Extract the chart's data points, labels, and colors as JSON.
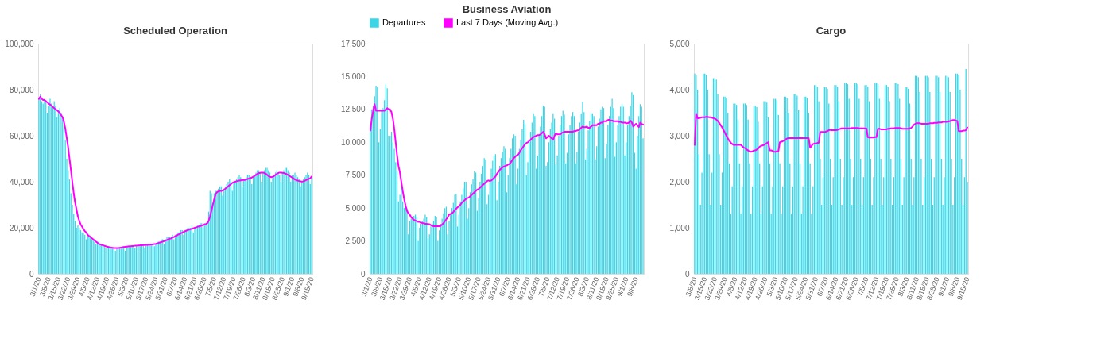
{
  "chart_data": [
    {
      "type": "bar",
      "title": "Scheduled Operation",
      "grid": false,
      "categories": [
        "3/1/20",
        null,
        null,
        null,
        null,
        null,
        null,
        "3/8/20",
        null,
        null,
        null,
        null,
        null,
        null,
        "3/15/20",
        null,
        null,
        null,
        null,
        null,
        null,
        "3/22/20",
        null,
        null,
        null,
        null,
        null,
        null,
        "3/29/20",
        null,
        null,
        null,
        null,
        null,
        null,
        "4/5/20",
        null,
        null,
        null,
        null,
        null,
        null,
        "4/12/20",
        null,
        null,
        null,
        null,
        null,
        null,
        "4/19/20",
        null,
        null,
        null,
        null,
        null,
        null,
        "4/26/20",
        null,
        null,
        null,
        null,
        null,
        null,
        "5/3/20",
        null,
        null,
        null,
        null,
        null,
        null,
        "5/10/20",
        null,
        null,
        null,
        null,
        null,
        null,
        "5/17/20",
        null,
        null,
        null,
        null,
        null,
        null,
        "5/24/20",
        null,
        null,
        null,
        null,
        null,
        null,
        "5/31/20",
        null,
        null,
        null,
        null,
        null,
        null,
        "6/7/20",
        null,
        null,
        null,
        null,
        null,
        null,
        "6/14/20",
        null,
        null,
        null,
        null,
        null,
        null,
        "6/21/20",
        null,
        null,
        null,
        null,
        null,
        null,
        "6/28/20",
        null,
        null,
        null,
        null,
        null,
        null,
        "7/5/20",
        null,
        null,
        null,
        null,
        null,
        null,
        "7/12/20",
        null,
        null,
        null,
        null,
        null,
        null,
        "7/19/20",
        null,
        null,
        null,
        null,
        null,
        null,
        "7/26/20",
        null,
        null,
        null,
        null,
        null,
        null,
        "8/3/20",
        null,
        null,
        null,
        null,
        null,
        null,
        "8/11/20",
        null,
        null,
        null,
        null,
        null,
        null,
        "8/18/20",
        null,
        null,
        null,
        null,
        null,
        null,
        "8/25/20",
        null,
        null,
        null,
        null,
        null,
        null,
        "9/1/20",
        null,
        null,
        null,
        null,
        null,
        null,
        "9/8/20",
        null,
        null,
        null,
        null,
        null,
        null,
        "9/15/20"
      ],
      "ylim": [
        0,
        100000
      ],
      "yticks": [
        0,
        {
          "value": 20000,
          "label": "20,000"
        },
        {
          "value": 40000,
          "label": "40,000"
        },
        {
          "value": 60000,
          "label": "60,000"
        },
        {
          "value": 80000,
          "label": "80,000"
        },
        {
          "value": 100000,
          "label": "100,000"
        }
      ],
      "series": [
        {
          "color": "#3dd5e6",
          "values": [
            76000,
            78000,
            75000,
            74000,
            76000,
            75000,
            70000,
            73000,
            76000,
            74000,
            73000,
            75000,
            73000,
            68000,
            71000,
            72000,
            70000,
            67000,
            63000,
            58000,
            50000,
            45000,
            41000,
            35000,
            30000,
            26000,
            23000,
            20000,
            21000,
            20000,
            19000,
            18000,
            18000,
            17000,
            15000,
            17000,
            16000,
            16000,
            15000,
            15000,
            14000,
            13000,
            14000,
            14000,
            13000,
            13000,
            13000,
            12000,
            11000,
            12000,
            12000,
            12000,
            11000,
            11000,
            11000,
            10000,
            11000,
            11000,
            11000,
            11000,
            12000,
            12000,
            10000,
            12000,
            12000,
            12000,
            12000,
            12000,
            12000,
            11000,
            12000,
            12000,
            12000,
            12000,
            13000,
            13000,
            11000,
            13000,
            13000,
            13000,
            13000,
            13000,
            13000,
            12000,
            13000,
            14000,
            14000,
            14000,
            15000,
            15000,
            13000,
            15000,
            16000,
            16000,
            16000,
            16000,
            17000,
            15000,
            17000,
            17000,
            18000,
            18000,
            19000,
            19000,
            17000,
            19000,
            19000,
            20000,
            20000,
            20000,
            21000,
            18000,
            20000,
            20000,
            21000,
            21000,
            22000,
            22000,
            20000,
            22000,
            22000,
            22000,
            27000,
            36000,
            35000,
            30000,
            35000,
            36000,
            36000,
            37000,
            38000,
            38000,
            34000,
            37000,
            38000,
            39000,
            40000,
            41000,
            40000,
            36000,
            40000,
            40000,
            41000,
            42000,
            43000,
            42000,
            38000,
            41000,
            41000,
            42000,
            43000,
            43000,
            42000,
            39000,
            42000,
            43000,
            44000,
            45000,
            45000,
            44000,
            40000,
            44000,
            45000,
            46000,
            46000,
            45000,
            44000,
            40000,
            42000,
            43000,
            44000,
            45000,
            44000,
            43000,
            40000,
            44000,
            45000,
            46000,
            46000,
            45000,
            44000,
            40000,
            43000,
            43000,
            44000,
            43000,
            42000,
            41000,
            38000,
            40000,
            41000,
            42000,
            43000,
            44000,
            43000,
            39000,
            42000
          ]
        },
        {
          "color": "#ff00ff",
          "type": "line",
          "values": [
            76000,
            77000,
            76000,
            75500,
            75500,
            75000,
            74500,
            74000,
            73500,
            73000,
            72500,
            72000,
            71500,
            71000,
            70500,
            70000,
            69000,
            68000,
            66000,
            63000,
            59000,
            55000,
            50000,
            45000,
            40000,
            35000,
            31000,
            28000,
            25000,
            23000,
            21500,
            20500,
            19500,
            18500,
            18000,
            17000,
            16500,
            16000,
            15500,
            15000,
            14500,
            14000,
            13500,
            13000,
            12800,
            12600,
            12400,
            12200,
            12000,
            11800,
            11600,
            11500,
            11400,
            11300,
            11200,
            11200,
            11200,
            11200,
            11300,
            11400,
            11500,
            11600,
            11700,
            11800,
            11900,
            12000,
            12000,
            12100,
            12100,
            12200,
            12200,
            12300,
            12300,
            12400,
            12400,
            12500,
            12500,
            12600,
            12600,
            12700,
            12700,
            12800,
            12800,
            12900,
            13000,
            13200,
            13400,
            13600,
            13800,
            14000,
            14200,
            14500,
            14700,
            15000,
            15200,
            15400,
            15700,
            16000,
            16300,
            16600,
            17000,
            17300,
            17600,
            17900,
            18200,
            18500,
            18800,
            19000,
            19200,
            19400,
            19600,
            19800,
            20000,
            20200,
            20400,
            20600,
            20800,
            21000,
            21200,
            21400,
            21600,
            22000,
            23000,
            25000,
            27500,
            30000,
            32500,
            34500,
            35500,
            35800,
            36000,
            36000,
            36200,
            36500,
            37000,
            37500,
            38000,
            38500,
            39000,
            39500,
            39800,
            40000,
            40200,
            40400,
            40500,
            40600,
            40700,
            40800,
            40800,
            41000,
            41200,
            41400,
            41600,
            41800,
            42200,
            42600,
            43000,
            43400,
            43700,
            43900,
            44000,
            44000,
            43800,
            43500,
            43000,
            42500,
            42200,
            42000,
            42200,
            42500,
            43000,
            43400,
            43800,
            44000,
            44000,
            43900,
            43800,
            43600,
            43300,
            43000,
            42600,
            42200,
            41800,
            41400,
            41000,
            40700,
            40500,
            40300,
            40200,
            40100,
            40200,
            40400,
            40700,
            41000,
            41300,
            41500,
            42300
          ]
        }
      ]
    },
    {
      "type": "bar",
      "title": "Business Aviation",
      "legend": "top",
      "grid": false,
      "categories": [
        "3/1/20",
        null,
        null,
        null,
        null,
        null,
        null,
        "3/8/20",
        null,
        null,
        null,
        null,
        null,
        null,
        "3/15/20",
        null,
        null,
        null,
        null,
        null,
        null,
        "3/22/20",
        null,
        null,
        null,
        null,
        null,
        null,
        "3/29/20",
        null,
        null,
        null,
        null,
        null,
        null,
        "4/5/20",
        null,
        null,
        null,
        null,
        null,
        null,
        "4/12/20",
        null,
        null,
        null,
        null,
        null,
        null,
        "4/19/20",
        null,
        null,
        null,
        null,
        null,
        null,
        "4/26/20",
        null,
        null,
        null,
        null,
        null,
        null,
        "5/3/20",
        null,
        null,
        null,
        null,
        null,
        null,
        "5/10/20",
        null,
        null,
        null,
        null,
        null,
        null,
        "5/17/20",
        null,
        null,
        null,
        null,
        null,
        null,
        "5/24/20",
        null,
        null,
        null,
        null,
        null,
        null,
        "5/31/20",
        null,
        null,
        null,
        null,
        null,
        null,
        "6/7/20",
        null,
        null,
        null,
        null,
        null,
        null,
        "6/14/20",
        null,
        null,
        null,
        null,
        null,
        null,
        "6/21/20",
        null,
        null,
        null,
        null,
        null,
        null,
        "6/28/20",
        null,
        null,
        null,
        null,
        null,
        null,
        "7/5/20",
        null,
        null,
        null,
        null,
        null,
        null,
        "7/12/20",
        null,
        null,
        null,
        null,
        null,
        null,
        "7/19/20",
        null,
        null,
        null,
        null,
        null,
        null,
        "7/26/20",
        null,
        null,
        null,
        null,
        null,
        null,
        "8/3/20",
        null,
        null,
        null,
        null,
        null,
        null,
        "8/11/20",
        null,
        null,
        null,
        null,
        null,
        null,
        "8/18/20",
        null,
        null,
        null,
        null,
        null,
        null,
        "8/25/20",
        null,
        null,
        null,
        null,
        null,
        null,
        "9/1/20",
        null,
        null,
        null,
        null,
        null,
        null,
        "9/8/20",
        null,
        null,
        null,
        null,
        null
      ],
      "ylim": [
        0,
        17500
      ],
      "yticks": [
        0,
        {
          "value": 2500,
          "label": "2,500"
        },
        {
          "value": 5000,
          "label": "5,000"
        },
        {
          "value": 7500,
          "label": "7,500"
        },
        {
          "value": 10000,
          "label": "10,000"
        },
        {
          "value": 12500,
          "label": "12,500"
        },
        {
          "value": 15000,
          "label": "15,000"
        },
        {
          "value": 17500,
          "label": "17,500"
        }
      ],
      "series": [
        {
          "name": "Departures",
          "color": "#3dd5e6",
          "values": [
            11000,
            12500,
            12800,
            13500,
            14300,
            14200,
            10000,
            11000,
            12400,
            12600,
            13200,
            14400,
            14100,
            10500,
            10500,
            10800,
            10000,
            9500,
            8500,
            7800,
            5500,
            6000,
            6500,
            5500,
            5000,
            5200,
            5000,
            3000,
            4000,
            4200,
            4300,
            4400,
            4500,
            4300,
            2500,
            3500,
            3800,
            4000,
            4200,
            4500,
            4300,
            2700,
            3000,
            3600,
            3800,
            4000,
            4400,
            4300,
            2500,
            3300,
            3800,
            4200,
            4600,
            5000,
            5100,
            3000,
            4000,
            4600,
            5000,
            5400,
            6000,
            6100,
            3600,
            4500,
            5500,
            6000,
            6500,
            7000,
            7000,
            4200,
            5000,
            6200,
            6800,
            7200,
            7800,
            7700,
            4800,
            5800,
            7000,
            7600,
            8200,
            8800,
            8700,
            5300,
            6000,
            7000,
            8000,
            8600,
            9000,
            9100,
            5600,
            7000,
            8200,
            8800,
            9300,
            9700,
            9500,
            6200,
            7500,
            8800,
            9500,
            10300,
            10600,
            10500,
            6800,
            8000,
            9500,
            10200,
            11000,
            11700,
            11400,
            7500,
            8500,
            10000,
            10800,
            11500,
            12200,
            12000,
            8000,
            9000,
            10500,
            11200,
            12000,
            12800,
            12700,
            8200,
            8500,
            10000,
            11000,
            11500,
            12200,
            11800,
            8300,
            9000,
            10500,
            11300,
            12000,
            12400,
            12100,
            8400,
            9200,
            10600,
            11300,
            12000,
            12300,
            12000,
            8400,
            9300,
            10800,
            11500,
            12200,
            13100,
            12300,
            8700,
            9500,
            10900,
            11600,
            12200,
            12200,
            12000,
            8700,
            9700,
            11200,
            11800,
            12500,
            12700,
            12600,
            8800,
            9900,
            11300,
            12000,
            12700,
            13300,
            12600,
            8900,
            10000,
            11300,
            12000,
            12700,
            12900,
            12700,
            9000,
            10000,
            11300,
            12000,
            12800,
            13800,
            13600,
            9200,
            8000,
            10500,
            12000,
            12900,
            12700,
            10300
          ]
        },
        {
          "name": "Last 7 Days (Moving Avg.)",
          "color": "#ff00ff",
          "type": "line",
          "values": [
            10900,
            11800,
            12400,
            12900,
            12400,
            12400,
            12400,
            12400,
            12400,
            12400,
            12400,
            12500,
            12600,
            12500,
            12500,
            12300,
            11800,
            11000,
            10000,
            9000,
            8200,
            7700,
            7000,
            6300,
            5700,
            5200,
            4800,
            4600,
            4500,
            4300,
            4200,
            4100,
            4050,
            4000,
            3950,
            3950,
            3900,
            3850,
            3850,
            3800,
            3800,
            3780,
            3770,
            3700,
            3650,
            3620,
            3620,
            3620,
            3620,
            3620,
            3650,
            3750,
            3850,
            4000,
            4150,
            4300,
            4500,
            4550,
            4600,
            4700,
            4850,
            4950,
            5050,
            5150,
            5250,
            5400,
            5500,
            5600,
            5700,
            5750,
            5800,
            5900,
            6000,
            6100,
            6200,
            6300,
            6400,
            6450,
            6550,
            6650,
            6750,
            6850,
            6950,
            7050,
            7100,
            7050,
            7100,
            7200,
            7300,
            7400,
            7600,
            7750,
            7900,
            8000,
            8100,
            8150,
            8200,
            8250,
            8300,
            8350,
            8500,
            8650,
            8800,
            8900,
            9000,
            9050,
            9200,
            9400,
            9550,
            9700,
            9850,
            9950,
            10000,
            10100,
            10200,
            10300,
            10400,
            10450,
            10500,
            10550,
            10550,
            10600,
            10700,
            10800,
            10600,
            10300,
            10400,
            10500,
            10400,
            10300,
            10200,
            10500,
            10700,
            10600,
            10600,
            10600,
            10700,
            10750,
            10800,
            10800,
            10800,
            10800,
            10800,
            10800,
            10800,
            10850,
            10850,
            10900,
            10900,
            11000,
            11100,
            11200,
            11150,
            11150,
            11200,
            11100,
            11100,
            11200,
            11300,
            11300,
            11300,
            11300,
            11400,
            11400,
            11500,
            11500,
            11600,
            11600,
            11600,
            11700,
            11700,
            11650,
            11650,
            11600,
            11600,
            11600,
            11600,
            11550,
            11550,
            11500,
            11500,
            11500,
            11450,
            11450,
            11500,
            11650,
            11500,
            11200,
            11300,
            11400,
            11300,
            11150,
            11500,
            11400,
            11350
          ]
        }
      ]
    },
    {
      "type": "bar",
      "title": "Cargo",
      "grid": false,
      "categories": [
        "3/8/20",
        null,
        null,
        null,
        null,
        null,
        null,
        "3/15/20",
        null,
        null,
        null,
        null,
        null,
        null,
        "3/22/20",
        null,
        null,
        null,
        null,
        null,
        null,
        "3/29/20",
        null,
        null,
        null,
        null,
        null,
        null,
        "4/5/20",
        null,
        null,
        null,
        null,
        null,
        null,
        "4/12/20",
        null,
        null,
        null,
        null,
        null,
        null,
        "4/19/20",
        null,
        null,
        null,
        null,
        null,
        null,
        "4/26/20",
        null,
        null,
        null,
        null,
        null,
        null,
        "5/3/20",
        null,
        null,
        null,
        null,
        null,
        null,
        "5/10/20",
        null,
        null,
        null,
        null,
        null,
        null,
        "5/17/20",
        null,
        null,
        null,
        null,
        null,
        null,
        "5/24/20",
        null,
        null,
        null,
        null,
        null,
        null,
        "5/31/20",
        null,
        null,
        null,
        null,
        null,
        null,
        "6/7/20",
        null,
        null,
        null,
        null,
        null,
        null,
        "6/14/20",
        null,
        null,
        null,
        null,
        null,
        null,
        "6/21/20",
        null,
        null,
        null,
        null,
        null,
        null,
        "6/28/20",
        null,
        null,
        null,
        null,
        null,
        null,
        "7/5/20",
        null,
        null,
        null,
        null,
        null,
        null,
        "7/12/20",
        null,
        null,
        null,
        null,
        null,
        null,
        "7/19/20",
        null,
        null,
        null,
        null,
        null,
        null,
        "7/26/20",
        null,
        null,
        null,
        null,
        null,
        null,
        "8/3/20",
        null,
        null,
        null,
        null,
        null,
        null,
        "8/11/20",
        null,
        null,
        null,
        null,
        null,
        null,
        "8/18/20",
        null,
        null,
        null,
        null,
        null,
        null,
        "8/25/20",
        null,
        null,
        null,
        null,
        null,
        null,
        "9/1/20",
        null,
        null,
        null,
        null,
        null,
        null,
        "9/8/20",
        null,
        null,
        null,
        null,
        null,
        null,
        "9/15/20"
      ],
      "ylim": [
        0,
        5000
      ],
      "yticks": [
        0,
        {
          "value": 1000,
          "label": "1,000"
        },
        {
          "value": 2000,
          "label": "2,000"
        },
        {
          "value": 3000,
          "label": "3,000"
        },
        {
          "value": 4000,
          "label": "4,000"
        },
        {
          "value": 5000,
          "label": "5,000"
        }
      ],
      "series": [
        {
          "color": "#3dd5e6",
          "values": [
            4350,
            4320,
            4000,
            2600,
            1500,
            2200,
            4350,
            4350,
            4320,
            4000,
            2600,
            1500,
            2200,
            4250,
            4250,
            4220,
            3900,
            2600,
            1500,
            2200,
            3850,
            3850,
            3820,
            3500,
            2400,
            1300,
            1900,
            3700,
            3700,
            3670,
            3350,
            2400,
            1300,
            1900,
            3700,
            3700,
            3670,
            3350,
            2400,
            1300,
            1900,
            3650,
            3650,
            3620,
            3300,
            2400,
            1300,
            1900,
            3750,
            3750,
            3720,
            3400,
            2400,
            1300,
            1900,
            3800,
            3800,
            3770,
            3450,
            2400,
            1300,
            1900,
            3850,
            3850,
            3820,
            3500,
            2400,
            1300,
            1900,
            3900,
            3900,
            3870,
            3550,
            2400,
            1300,
            1900,
            3850,
            3850,
            3820,
            3500,
            2400,
            1300,
            1900,
            4100,
            4100,
            4070,
            3750,
            2500,
            1500,
            2100,
            4050,
            4050,
            4020,
            3700,
            2500,
            1500,
            2100,
            4100,
            4100,
            4070,
            3750,
            2500,
            1500,
            2100,
            4150,
            4150,
            4120,
            3800,
            2500,
            1500,
            2100,
            4150,
            4150,
            4120,
            3800,
            2500,
            1500,
            2100,
            4100,
            4100,
            4070,
            3750,
            2500,
            1500,
            2100,
            4150,
            4150,
            4120,
            3800,
            2500,
            1500,
            2100,
            4100,
            4100,
            4070,
            3750,
            2500,
            1500,
            2100,
            4150,
            4150,
            4120,
            3800,
            2500,
            1500,
            2100,
            4050,
            4050,
            4020,
            3700,
            2500,
            1500,
            2100,
            4300,
            4300,
            4270,
            3950,
            2500,
            1500,
            2100,
            4300,
            4300,
            4270,
            3950,
            2500,
            1500,
            2100,
            4300,
            4300,
            4270,
            3950,
            2500,
            1500,
            2100,
            4300,
            4300,
            4270,
            3950,
            2500,
            1500,
            2100,
            4350,
            4350,
            4320,
            4000,
            2500,
            1500,
            2100,
            4450,
            2000
          ]
        },
        {
          "color": "#ff00ff",
          "type": "line",
          "values": [
            2800,
            3480,
            3380,
            3380,
            3390,
            3400,
            3400,
            3400,
            3410,
            3410,
            3400,
            3400,
            3390,
            3380,
            3370,
            3350,
            3320,
            3280,
            3230,
            3180,
            3120,
            3060,
            3000,
            2940,
            2890,
            2850,
            2820,
            2800,
            2800,
            2800,
            2800,
            2800,
            2800,
            2770,
            2740,
            2730,
            2700,
            2680,
            2660,
            2650,
            2660,
            2680,
            2680,
            2700,
            2720,
            2760,
            2780,
            2790,
            2800,
            2820,
            2840,
            2860,
            2680,
            2680,
            2670,
            2650,
            2650,
            2660,
            2660,
            2860,
            2870,
            2880,
            2900,
            2920,
            2940,
            2950,
            2950,
            2950,
            2950,
            2950,
            2950,
            2950,
            2950,
            2950,
            2950,
            2950,
            2950,
            2950,
            2950,
            2950,
            2740,
            2780,
            2820,
            2830,
            2830,
            2840,
            2850,
            3080,
            3080,
            3080,
            3080,
            3090,
            3100,
            3120,
            3130,
            3120,
            3120,
            3120,
            3120,
            3130,
            3140,
            3150,
            3160,
            3160,
            3160,
            3160,
            3160,
            3160,
            3160,
            3170,
            3170,
            3170,
            3170,
            3170,
            3160,
            3160,
            3160,
            3160,
            3160,
            3160,
            2970,
            2960,
            2960,
            2960,
            2960,
            2970,
            2970,
            3150,
            3150,
            3140,
            3140,
            3140,
            3140,
            3140,
            3150,
            3150,
            3160,
            3160,
            3160,
            3170,
            3170,
            3170,
            3170,
            3160,
            3150,
            3150,
            3150,
            3150,
            3150,
            3160,
            3170,
            3200,
            3240,
            3260,
            3270,
            3270,
            3270,
            3260,
            3260,
            3260,
            3260,
            3260,
            3260,
            3270,
            3270,
            3270,
            3280,
            3280,
            3280,
            3290,
            3290,
            3290,
            3300,
            3300,
            3300,
            3300,
            3310,
            3320,
            3330,
            3340,
            3340,
            3330,
            3320,
            3100,
            3100,
            3100,
            3110,
            3110,
            3120,
            3180
          ]
        }
      ]
    }
  ]
}
